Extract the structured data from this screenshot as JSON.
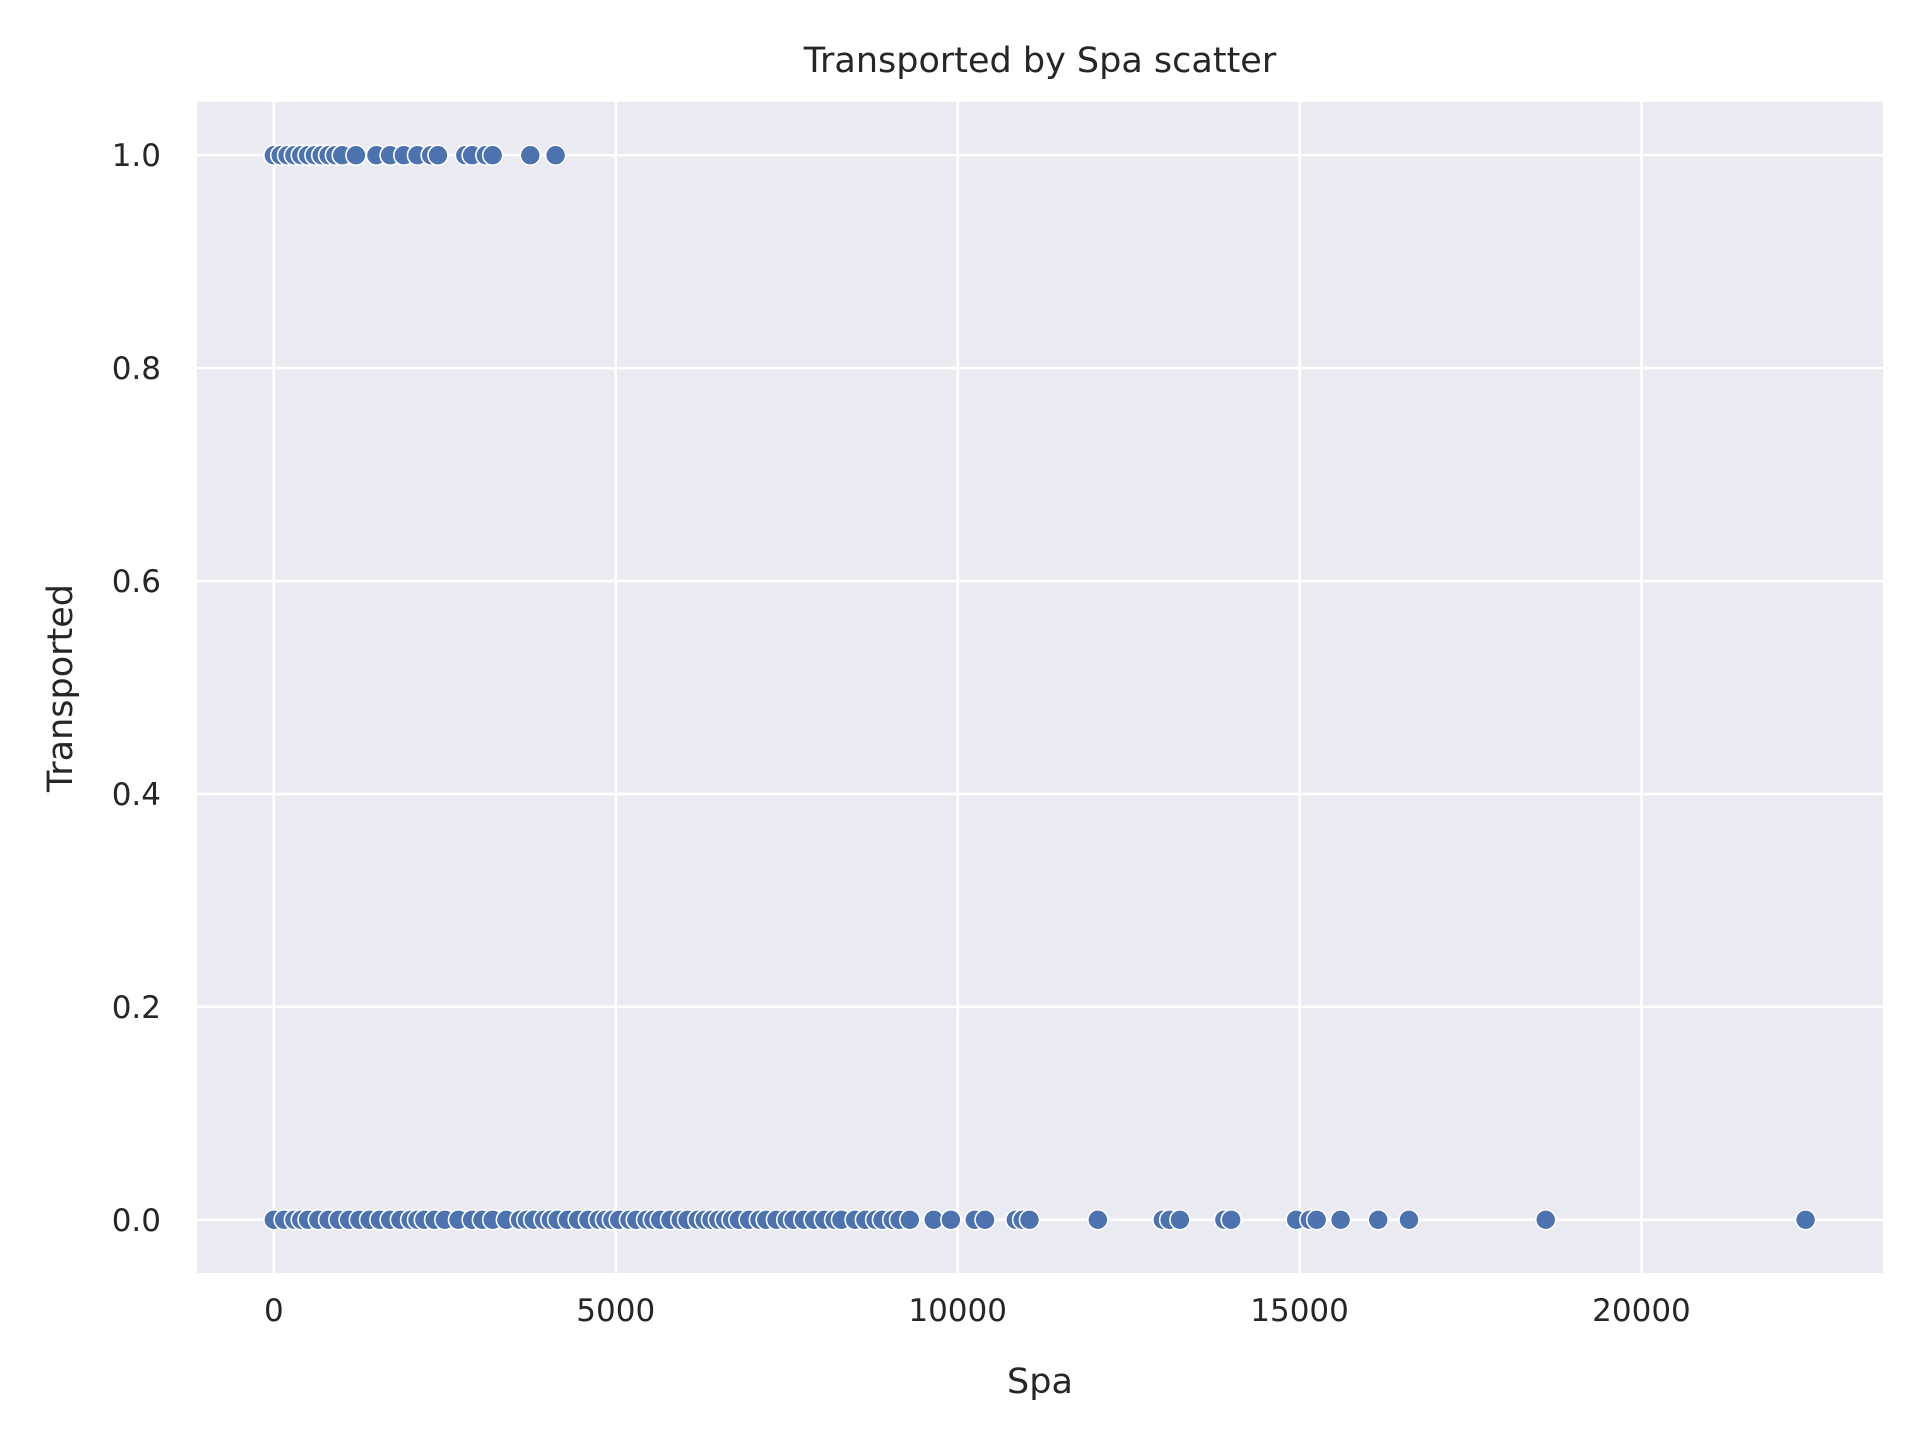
{
  "chart_data": {
    "type": "scatter",
    "title": "Transported by Spa scatter",
    "xlabel": "Spa",
    "ylabel": "Transported",
    "xlim": [
      -1124,
      23532
    ],
    "ylim": [
      -0.05,
      1.05
    ],
    "xticks": [
      0,
      5000,
      10000,
      15000,
      20000
    ],
    "xtick_labels": [
      "0",
      "5000",
      "10000",
      "15000",
      "20000"
    ],
    "yticks": [
      0.0,
      0.2,
      0.4,
      0.6,
      0.8,
      1.0
    ],
    "ytick_labels": [
      "0.0",
      "0.2",
      "0.4",
      "0.6",
      "0.8",
      "1.0"
    ],
    "grid": true,
    "colors": {
      "background": "#eaeaf2",
      "grid": "#ffffff",
      "point": "#4c72b0",
      "point_edge": "#ffffff"
    },
    "series": [
      {
        "x": [
          0,
          100,
          200,
          300,
          400,
          500,
          600,
          700,
          800,
          900,
          1000,
          1200,
          1500,
          1700,
          1900,
          2100,
          2300,
          2400,
          2800,
          2900,
          3100,
          3200,
          3750,
          4120
        ],
        "y": [
          1,
          1,
          1,
          1,
          1,
          1,
          1,
          1,
          1,
          1,
          1,
          1,
          1,
          1,
          1,
          1,
          1,
          1,
          1,
          1,
          1,
          1,
          1,
          1
        ]
      },
      {
        "x": [
          0,
          150,
          300,
          400,
          500,
          650,
          800,
          950,
          1100,
          1250,
          1400,
          1550,
          1700,
          1850,
          2000,
          2100,
          2200,
          2350,
          2500,
          2700,
          2900,
          3050,
          3200,
          3400,
          3600,
          3700,
          3800,
          3950,
          4050,
          4150,
          4300,
          4450,
          4600,
          4750,
          4850,
          4950,
          5050,
          5200,
          5300,
          5450,
          5550,
          5650,
          5800,
          5950,
          6050,
          6200,
          6300,
          6400,
          6500,
          6600,
          6700,
          6800,
          6950,
          7100,
          7200,
          7350,
          7500,
          7600,
          7750,
          7900,
          8050,
          8200,
          8300,
          8500,
          8650,
          8800,
          8900,
          9050,
          9150,
          9300,
          9650,
          9900,
          10250,
          10400,
          10850,
          10950,
          11050,
          12050,
          13000,
          13100,
          13250,
          13900,
          14000,
          14950,
          15150,
          15250,
          15600,
          16150,
          16600,
          18600,
          22400
        ],
        "y": [
          0,
          0,
          0,
          0,
          0,
          0,
          0,
          0,
          0,
          0,
          0,
          0,
          0,
          0,
          0,
          0,
          0,
          0,
          0,
          0,
          0,
          0,
          0,
          0,
          0,
          0,
          0,
          0,
          0,
          0,
          0,
          0,
          0,
          0,
          0,
          0,
          0,
          0,
          0,
          0,
          0,
          0,
          0,
          0,
          0,
          0,
          0,
          0,
          0,
          0,
          0,
          0,
          0,
          0,
          0,
          0,
          0,
          0,
          0,
          0,
          0,
          0,
          0,
          0,
          0,
          0,
          0,
          0,
          0,
          0,
          0,
          0,
          0,
          0,
          0,
          0,
          0,
          0,
          0,
          0,
          0,
          0,
          0,
          0,
          0,
          0,
          0,
          0,
          0,
          0,
          0
        ]
      }
    ]
  }
}
